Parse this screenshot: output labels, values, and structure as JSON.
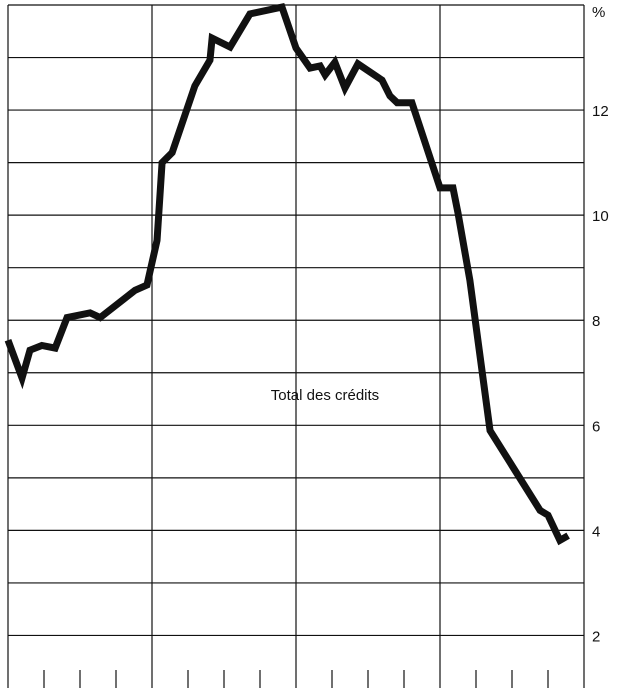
{
  "chart_data": {
    "type": "line",
    "annotation": "Total des crédits",
    "x": [
      0,
      0.39,
      0.61,
      0.94,
      1.31,
      1.64,
      2.28,
      2.56,
      3.53,
      3.86,
      4.14,
      4.28,
      4.56,
      5.19,
      5.61,
      5.67,
      6.17,
      6.72,
      7.61,
      8.0,
      8.39,
      8.67,
      8.81,
      9.08,
      9.36,
      9.72,
      10.39,
      10.61,
      10.81,
      11.22,
      12.0,
      12.36,
      12.5,
      12.83,
      13.39,
      14.78,
      15.0,
      15.33,
      15.56
    ],
    "series": [
      {
        "color": "#111111",
        "values": [
          7.62,
          6.9,
          7.43,
          7.52,
          7.47,
          8.05,
          8.14,
          8.05,
          8.57,
          8.67,
          9.52,
          11.0,
          11.19,
          12.46,
          12.95,
          13.37,
          13.2,
          13.83,
          13.96,
          13.18,
          12.8,
          12.84,
          12.67,
          12.91,
          12.42,
          12.88,
          12.57,
          12.27,
          12.14,
          12.14,
          10.52,
          10.52,
          10.04,
          8.76,
          5.9,
          4.38,
          4.29,
          3.81,
          3.9
        ]
      }
    ],
    "xlim": [
      0,
      16
    ],
    "xticks": [
      0,
      4,
      8,
      12,
      16
    ],
    "xticks_minor": [
      1,
      2,
      3,
      5,
      6,
      7,
      9,
      10,
      11,
      13,
      14,
      15
    ],
    "ylim": [
      1,
      14
    ],
    "yticks": [
      2,
      4,
      6,
      8,
      10,
      12,
      {
        "value": 14,
        "label": "%"
      }
    ],
    "ygrid": [
      3,
      5,
      7,
      9,
      11,
      13
    ],
    "grid": true
  }
}
